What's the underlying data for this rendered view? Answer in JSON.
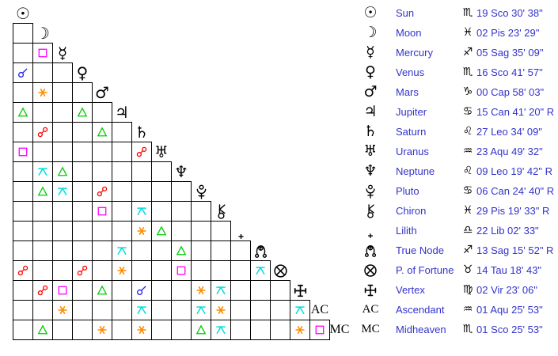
{
  "page_title": "Aspect grid with planetary positions",
  "colors": {
    "background": "#ffffff",
    "grid_line": "#000000",
    "glyph": "#000000",
    "legend_text": "#3333cc"
  },
  "aspect_types": {
    "conjunction": {
      "label": "Conjunction",
      "color": "#2222ee",
      "icon": "conjunction-aspect-icon"
    },
    "sextile": {
      "label": "Sextile",
      "color": "#ff8c00",
      "icon": "sextile-aspect-icon"
    },
    "square": {
      "label": "Square",
      "color": "#ff00ff",
      "icon": "square-aspect-icon"
    },
    "trine": {
      "label": "Trine",
      "color": "#00cc00",
      "icon": "trine-aspect-icon"
    },
    "opposition": {
      "label": "Opposition",
      "color": "#ff0000",
      "icon": "opposition-aspect-icon"
    },
    "quincunx": {
      "label": "Quincunx",
      "color": "#00dddd",
      "icon": "quincunx-aspect-icon"
    }
  },
  "chart_data": {
    "type": "table",
    "title": "Astrological aspectarian: 17-point lower-triangular aspect matrix with zodiacal positions",
    "points": [
      {
        "id": "sun",
        "label": "Sun",
        "glyph_char": "☉",
        "sign": "Scorpio",
        "sign_char": "♏",
        "position": "19 Sco 30' 38\""
      },
      {
        "id": "moon",
        "label": "Moon",
        "glyph_char": "☽",
        "sign": "Pisces",
        "sign_char": "♓",
        "position": "02 Pis 23' 29\""
      },
      {
        "id": "mercury",
        "label": "Mercury",
        "glyph_char": "☿",
        "sign": "Sagittarius",
        "sign_char": "♐",
        "position": "05 Sag 35' 09\""
      },
      {
        "id": "venus",
        "label": "Venus",
        "glyph_char": "♀",
        "sign": "Scorpio",
        "sign_char": "♏",
        "position": "16 Sco 41' 57\""
      },
      {
        "id": "mars",
        "label": "Mars",
        "glyph_char": "♂",
        "sign": "Capricorn",
        "sign_char": "♑",
        "position": "00 Cap 58' 03\""
      },
      {
        "id": "jupiter",
        "label": "Jupiter",
        "glyph_char": "♃",
        "sign": "Cancer",
        "sign_char": "♋",
        "position": "15 Can 41' 20\" R"
      },
      {
        "id": "saturn",
        "label": "Saturn",
        "glyph_char": "♄",
        "sign": "Leo",
        "sign_char": "♌",
        "position": "27 Leo 34' 09\""
      },
      {
        "id": "uranus",
        "label": "Uranus",
        "glyph_char": "♅",
        "sign": "Aquarius",
        "sign_char": "♒",
        "position": "23 Aqu 49' 32\""
      },
      {
        "id": "neptune",
        "label": "Neptune",
        "glyph_char": "♆",
        "sign": "Leo",
        "sign_char": "♌",
        "position": "09 Leo 19' 42\" R"
      },
      {
        "id": "pluto",
        "label": "Pluto",
        "glyph_svg": "pluto",
        "sign": "Cancer",
        "sign_char": "♋",
        "position": "06 Can 24' 40\" R"
      },
      {
        "id": "chiron",
        "label": "Chiron",
        "glyph_svg": "chiron",
        "sign": "Pisces",
        "sign_char": "♓",
        "position": "29 Pis 19' 33\" R"
      },
      {
        "id": "lilith",
        "label": "Lilith",
        "glyph_svg": "lilith",
        "sign": "Libra",
        "sign_char": "♎",
        "position": "22 Lib 02' 33\""
      },
      {
        "id": "true-node",
        "label": "True Node",
        "glyph_svg": "node",
        "sign": "Sagittarius",
        "sign_char": "♐",
        "position": "13 Sag 15' 52\" R"
      },
      {
        "id": "fortune",
        "label": "P. of Fortune",
        "glyph_svg": "pof",
        "sign": "Taurus",
        "sign_char": "♉",
        "position": "14 Tau 18' 43\""
      },
      {
        "id": "vertex",
        "label": "Vertex",
        "glyph_svg": "vertex",
        "sign": "Virgo",
        "sign_char": "♍",
        "position": "02 Vir 23' 06\""
      },
      {
        "id": "ascendant",
        "label": "Ascendant",
        "glyph_text": "AC",
        "sign": "Aquarius",
        "sign_char": "♒",
        "position": "01 Aqu 25' 53\""
      },
      {
        "id": "midheaven",
        "label": "Midheaven",
        "glyph_text": "MC",
        "sign": "Scorpio",
        "sign_char": "♏",
        "position": "01 Sco 25' 53\""
      }
    ],
    "aspects": [
      {
        "row": 3,
        "col": 2,
        "type": "square"
      },
      {
        "row": 4,
        "col": 1,
        "type": "conjunction"
      },
      {
        "row": 5,
        "col": 2,
        "type": "sextile"
      },
      {
        "row": 6,
        "col": 1,
        "type": "trine"
      },
      {
        "row": 6,
        "col": 4,
        "type": "trine"
      },
      {
        "row": 7,
        "col": 2,
        "type": "opposition"
      },
      {
        "row": 7,
        "col": 5,
        "type": "trine"
      },
      {
        "row": 8,
        "col": 1,
        "type": "square"
      },
      {
        "row": 8,
        "col": 7,
        "type": "opposition"
      },
      {
        "row": 9,
        "col": 2,
        "type": "quincunx"
      },
      {
        "row": 9,
        "col": 3,
        "type": "trine"
      },
      {
        "row": 10,
        "col": 2,
        "type": "trine"
      },
      {
        "row": 10,
        "col": 3,
        "type": "quincunx"
      },
      {
        "row": 10,
        "col": 5,
        "type": "opposition"
      },
      {
        "row": 11,
        "col": 5,
        "type": "square"
      },
      {
        "row": 11,
        "col": 7,
        "type": "quincunx"
      },
      {
        "row": 12,
        "col": 7,
        "type": "sextile"
      },
      {
        "row": 12,
        "col": 8,
        "type": "trine"
      },
      {
        "row": 13,
        "col": 6,
        "type": "quincunx"
      },
      {
        "row": 13,
        "col": 9,
        "type": "trine"
      },
      {
        "row": 14,
        "col": 1,
        "type": "opposition"
      },
      {
        "row": 14,
        "col": 4,
        "type": "opposition"
      },
      {
        "row": 14,
        "col": 6,
        "type": "sextile"
      },
      {
        "row": 14,
        "col": 9,
        "type": "square"
      },
      {
        "row": 14,
        "col": 13,
        "type": "quincunx"
      },
      {
        "row": 15,
        "col": 2,
        "type": "opposition"
      },
      {
        "row": 15,
        "col": 3,
        "type": "square"
      },
      {
        "row": 15,
        "col": 5,
        "type": "trine"
      },
      {
        "row": 15,
        "col": 7,
        "type": "conjunction"
      },
      {
        "row": 15,
        "col": 10,
        "type": "sextile"
      },
      {
        "row": 15,
        "col": 11,
        "type": "quincunx"
      },
      {
        "row": 16,
        "col": 3,
        "type": "sextile"
      },
      {
        "row": 16,
        "col": 7,
        "type": "quincunx"
      },
      {
        "row": 16,
        "col": 10,
        "type": "quincunx"
      },
      {
        "row": 16,
        "col": 11,
        "type": "sextile"
      },
      {
        "row": 16,
        "col": 15,
        "type": "quincunx"
      },
      {
        "row": 17,
        "col": 2,
        "type": "trine"
      },
      {
        "row": 17,
        "col": 5,
        "type": "sextile"
      },
      {
        "row": 17,
        "col": 7,
        "type": "sextile"
      },
      {
        "row": 17,
        "col": 10,
        "type": "trine"
      },
      {
        "row": 17,
        "col": 11,
        "type": "quincunx"
      },
      {
        "row": 17,
        "col": 15,
        "type": "sextile"
      },
      {
        "row": 17,
        "col": 16,
        "type": "square"
      }
    ]
  }
}
